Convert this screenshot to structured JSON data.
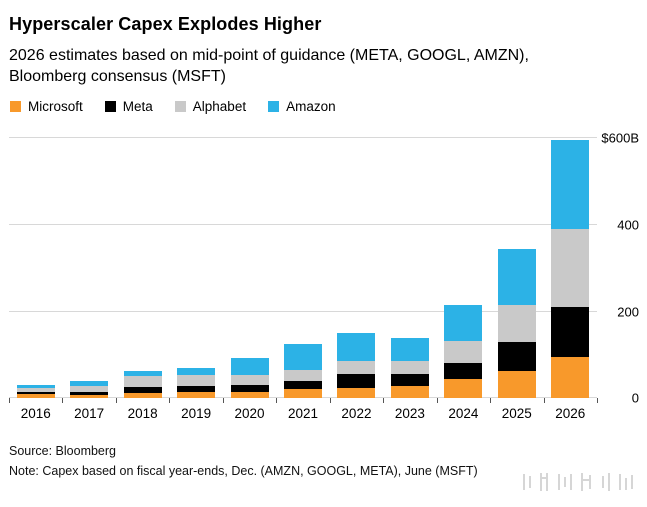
{
  "header": {
    "title": "Hyperscaler Capex Explodes Higher",
    "subtitle": "2026 estimates based on mid-point of guidance (META, GOOGL, AMZN), Bloomberg consensus (MSFT)"
  },
  "legend": {
    "items": [
      {
        "label": "Microsoft",
        "color": "#F8992B"
      },
      {
        "label": "Meta",
        "color": "#000000"
      },
      {
        "label": "Alphabet",
        "color": "#C9C9C9"
      },
      {
        "label": "Amazon",
        "color": "#2CB2E6"
      }
    ]
  },
  "chart_data": {
    "type": "bar",
    "stacked": true,
    "title": "Hyperscaler Capex Explodes Higher",
    "categories": [
      "2016",
      "2017",
      "2018",
      "2019",
      "2020",
      "2021",
      "2022",
      "2023",
      "2024",
      "2025",
      "2026"
    ],
    "series": [
      {
        "name": "Microsoft",
        "color": "#F8992B",
        "values": [
          9,
          8,
          12,
          14,
          15,
          21,
          24,
          28,
          44,
          64,
          95
        ]
      },
      {
        "name": "Meta",
        "color": "#000000",
        "values": [
          5,
          7,
          14,
          15,
          16,
          19,
          31,
          27,
          37,
          66,
          115
        ]
      },
      {
        "name": "Alphabet",
        "color": "#C9C9C9",
        "values": [
          10,
          13,
          25,
          24,
          22,
          25,
          31,
          32,
          52,
          85,
          180
        ]
      },
      {
        "name": "Amazon",
        "color": "#2CB2E6",
        "values": [
          7,
          12,
          13,
          17,
          40,
          61,
          64,
          53,
          83,
          130,
          205
        ]
      }
    ],
    "ylim": [
      0,
      600
    ],
    "yticks": [
      {
        "value": 600,
        "label": "$600B"
      },
      {
        "value": 400,
        "label": "400"
      },
      {
        "value": 200,
        "label": "200"
      },
      {
        "value": 0,
        "label": "0"
      }
    ],
    "grid": "horizontal",
    "legend_position": "top",
    "units": "billions USD"
  },
  "footer": {
    "source": "Source: Bloomberg",
    "note": "Note: Capex based on fiscal year-ends, Dec. (AMZN, GOOGL, META), June (MSFT)"
  }
}
